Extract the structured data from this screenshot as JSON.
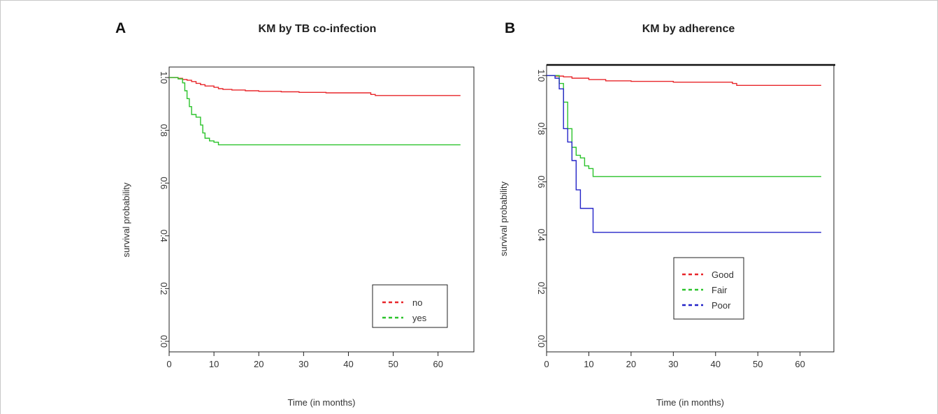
{
  "chart_data": [
    {
      "type": "line",
      "step": true,
      "panel_label": "A",
      "title": "KM by TB co-infection",
      "xlabel": "Time (in months)",
      "ylabel": "survival probability",
      "xlim": [
        0,
        68
      ],
      "ylim": [
        -0.04,
        1.04
      ],
      "xticks": [
        0,
        10,
        20,
        30,
        40,
        50,
        60
      ],
      "yticks": [
        0.0,
        0.2,
        0.4,
        0.6,
        0.8,
        1.0
      ],
      "xtick_labels": [
        "0",
        "10",
        "20",
        "30",
        "40",
        "50",
        "60"
      ],
      "ytick_labels": [
        "0.0",
        "0.2",
        "0.4",
        "0.6",
        "0.8",
        "1.0"
      ],
      "grid": false,
      "legend_position": "bottom-right",
      "series": [
        {
          "name": "no",
          "color": "#e8262a",
          "x": [
            0,
            2,
            3,
            4,
            5,
            6,
            7,
            8,
            10,
            11,
            12,
            14,
            17,
            20,
            25,
            29,
            35,
            45,
            46,
            65
          ],
          "y": [
            1.0,
            0.997,
            0.993,
            0.99,
            0.985,
            0.978,
            0.973,
            0.968,
            0.963,
            0.958,
            0.955,
            0.953,
            0.95,
            0.948,
            0.946,
            0.944,
            0.942,
            0.936,
            0.932,
            0.932
          ]
        },
        {
          "name": "yes",
          "color": "#2bc32b",
          "x": [
            0,
            2,
            3,
            3.5,
            4,
            4.5,
            5,
            6,
            7,
            7.5,
            8,
            9,
            10,
            11,
            65
          ],
          "y": [
            1.0,
            0.995,
            0.98,
            0.95,
            0.92,
            0.89,
            0.86,
            0.85,
            0.82,
            0.79,
            0.77,
            0.76,
            0.755,
            0.745,
            0.745
          ]
        }
      ]
    },
    {
      "type": "line",
      "step": true,
      "panel_label": "B",
      "title": "KM by adherence",
      "xlabel": "Time (in months)",
      "ylabel": "survival probability",
      "xlim": [
        0,
        68
      ],
      "ylim": [
        -0.04,
        1.04
      ],
      "xticks": [
        0,
        10,
        20,
        30,
        40,
        50,
        60
      ],
      "yticks": [
        0.0,
        0.2,
        0.4,
        0.6,
        0.8,
        1.0
      ],
      "xtick_labels": [
        "0",
        "10",
        "20",
        "30",
        "40",
        "50",
        "60"
      ],
      "ytick_labels": [
        "0.0",
        "0.2",
        "0.4",
        "0.6",
        "0.8",
        "1.0"
      ],
      "grid": false,
      "legend_position": "bottom-center",
      "series": [
        {
          "name": "Good",
          "color": "#e8262a",
          "x": [
            0,
            2,
            4,
            6,
            10,
            14,
            20,
            30,
            44,
            45,
            65
          ],
          "y": [
            1.0,
            0.998,
            0.995,
            0.99,
            0.985,
            0.98,
            0.978,
            0.975,
            0.97,
            0.963,
            0.963
          ]
        },
        {
          "name": "Fair",
          "color": "#2bc32b",
          "x": [
            0,
            3,
            4,
            5,
            6,
            7,
            8,
            9,
            10,
            11,
            65
          ],
          "y": [
            1.0,
            0.97,
            0.9,
            0.8,
            0.73,
            0.7,
            0.69,
            0.66,
            0.65,
            0.62,
            0.62
          ]
        },
        {
          "name": "Poor",
          "color": "#2424c8",
          "x": [
            0,
            2,
            3,
            4,
            5,
            6,
            7,
            8,
            9,
            10,
            11,
            65
          ],
          "y": [
            1.0,
            0.99,
            0.95,
            0.8,
            0.75,
            0.68,
            0.57,
            0.5,
            0.5,
            0.5,
            0.41,
            0.41
          ]
        }
      ]
    }
  ]
}
